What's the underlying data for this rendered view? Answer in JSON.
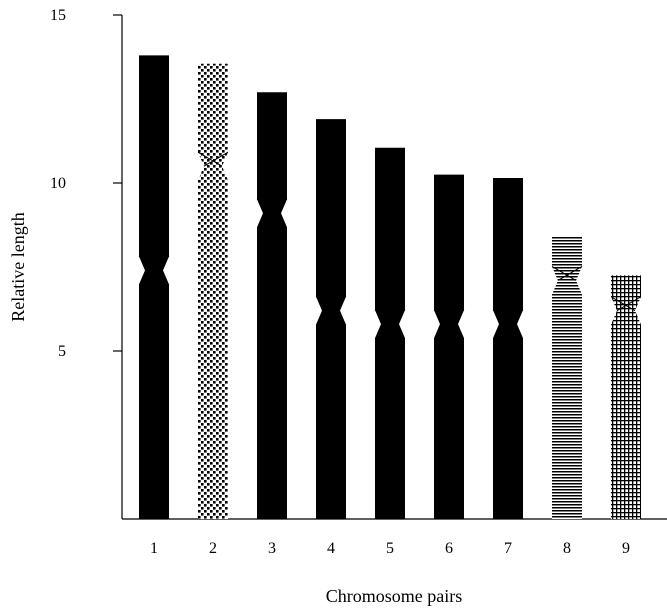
{
  "chart_data": {
    "type": "bar",
    "subtype": "idiogram",
    "title": "",
    "xlabel": "Chromosome pairs",
    "ylabel": "Relative length",
    "ylim": [
      0,
      15
    ],
    "y_ticks": [
      "5",
      "10",
      "15"
    ],
    "grid": false,
    "legend": "none",
    "categories": [
      "1",
      "2",
      "3",
      "4",
      "5",
      "6",
      "7",
      "8",
      "9"
    ],
    "values": [
      13.8,
      13.55,
      12.7,
      11.9,
      11.05,
      10.25,
      10.15,
      8.4,
      7.25
    ],
    "centromere": [
      7.4,
      10.5,
      9.1,
      6.2,
      5.8,
      5.8,
      5.8,
      7.1,
      6.2
    ],
    "patterns": [
      "solid",
      "dots",
      "solid",
      "solid",
      "solid",
      "solid",
      "solid",
      "horizontal-lines",
      "grid"
    ],
    "colors": {
      "fill": "#000000",
      "background": "#ffffff"
    }
  }
}
